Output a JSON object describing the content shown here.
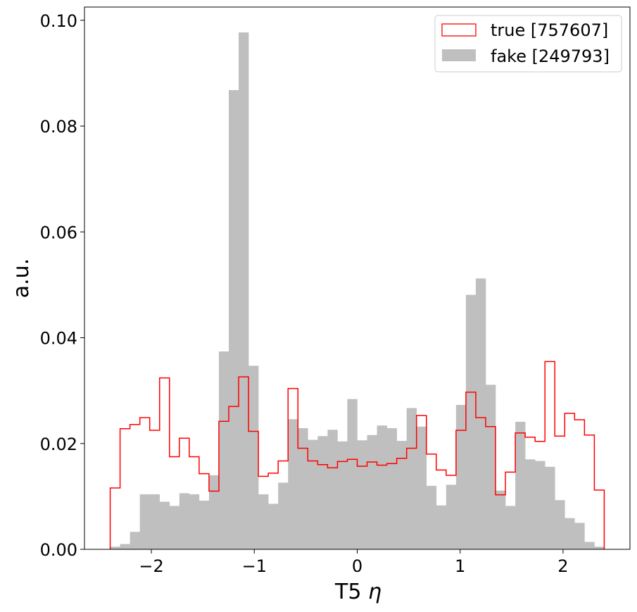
{
  "chart_data": {
    "type": "histogram",
    "xlabel": "T5 η",
    "xlabel_main": "T5",
    "xlabel_symbol": "η",
    "ylabel": "a.u.",
    "xlim": [
      -2.65,
      2.65
    ],
    "ylim": [
      0,
      0.1025
    ],
    "bin_range": [
      -2.4,
      2.4
    ],
    "n_bins": 50,
    "xticks": [
      -2,
      -1,
      0,
      1,
      2
    ],
    "xtick_labels": [
      "−2",
      "−1",
      "0",
      "1",
      "2"
    ],
    "yticks": [
      0,
      0.02,
      0.04,
      0.06,
      0.08,
      0.1
    ],
    "ytick_labels": [
      "0.00",
      "0.02",
      "0.04",
      "0.06",
      "0.08",
      "0.10"
    ],
    "legend_position": "top-right",
    "series": [
      {
        "name": "true [757607]",
        "style": "step",
        "color": "#ff0000",
        "values": [
          0.0116,
          0.0228,
          0.0236,
          0.0249,
          0.0225,
          0.0324,
          0.0175,
          0.021,
          0.0175,
          0.0143,
          0.011,
          0.0242,
          0.027,
          0.0326,
          0.0223,
          0.0138,
          0.0144,
          0.0167,
          0.0304,
          0.0191,
          0.0167,
          0.016,
          0.0154,
          0.0166,
          0.017,
          0.0157,
          0.0165,
          0.0159,
          0.0162,
          0.0172,
          0.0191,
          0.0253,
          0.018,
          0.015,
          0.014,
          0.0225,
          0.0297,
          0.0249,
          0.0232,
          0.0103,
          0.0146,
          0.022,
          0.0212,
          0.0204,
          0.0355,
          0.0214,
          0.0257,
          0.0245,
          0.0216,
          0.0112
        ]
      },
      {
        "name": "fake [249793]",
        "style": "filled",
        "color": "#bfbfbf",
        "values": [
          0.0005,
          0.001,
          0.0033,
          0.0104,
          0.0104,
          0.009,
          0.0082,
          0.0106,
          0.0104,
          0.0092,
          0.014,
          0.0374,
          0.0868,
          0.0977,
          0.0347,
          0.0104,
          0.0086,
          0.0126,
          0.0246,
          0.0229,
          0.0207,
          0.0214,
          0.0226,
          0.0204,
          0.0284,
          0.0206,
          0.0216,
          0.0234,
          0.0229,
          0.0205,
          0.0267,
          0.0232,
          0.012,
          0.0083,
          0.0122,
          0.0273,
          0.0481,
          0.0512,
          0.0311,
          0.0111,
          0.0082,
          0.0241,
          0.017,
          0.0167,
          0.0156,
          0.0093,
          0.0059,
          0.005,
          0.0014,
          0.0005
        ]
      }
    ]
  }
}
